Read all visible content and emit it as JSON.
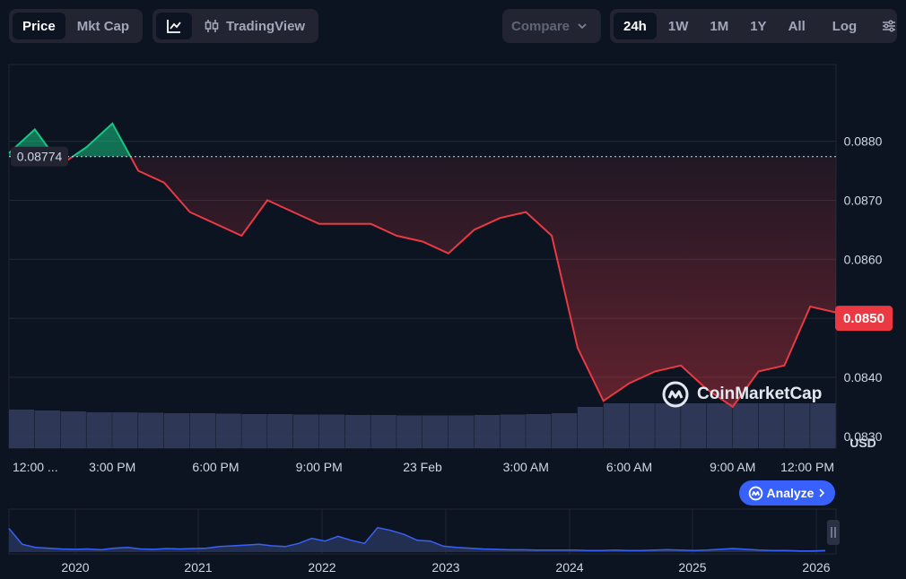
{
  "toolbar": {
    "tabs": [
      "Price",
      "Mkt Cap"
    ],
    "active_tab": "Price",
    "tradingview_label": "TradingView",
    "compare_label": "Compare",
    "ranges": [
      "24h",
      "1W",
      "1M",
      "1Y",
      "All"
    ],
    "active_range": "24h",
    "log_label": "Log"
  },
  "watermark": "CoinMarketCap",
  "analyze_label": "Analyze",
  "colors": {
    "up": "#16c784",
    "down": "#ea3943",
    "accent": "#3861fb",
    "volume": "#323b5c"
  },
  "chart_data": {
    "type": "line",
    "x_ticks": [
      "12:00 ...",
      "3:00 PM",
      "6:00 PM",
      "9:00 PM",
      "23 Feb",
      "3:00 AM",
      "6:00 AM",
      "9:00 AM",
      "12:00 PM"
    ],
    "y_ticks": [
      0.088,
      0.087,
      0.086,
      0.085,
      0.084,
      0.083
    ],
    "y_tick_labels": [
      "0.0880",
      "0.0870",
      "0.0860",
      "0.0850",
      "0.0840",
      "0.0830"
    ],
    "ylim": [
      0.0828,
      0.0893
    ],
    "ylabel": "USD",
    "reference_price": 0.08774,
    "reference_label": "0.08774",
    "current_price": 0.085,
    "current_label": "0.0850",
    "series": [
      {
        "x": [
          0,
          0.75,
          1.5,
          2.25,
          3,
          3.75,
          4.5,
          5.25,
          6,
          6.75,
          7.5,
          8.25,
          9,
          9.75,
          10.5,
          11.25,
          12,
          12.75,
          13.5,
          14.25,
          15,
          15.75,
          16.5,
          17.25,
          18,
          18.75,
          19.5,
          20.25,
          21,
          21.75,
          22.5,
          23.25,
          24
        ],
        "values": [
          0.0878,
          0.0882,
          0.0876,
          0.0879,
          0.0883,
          0.0875,
          0.0873,
          0.0868,
          0.0866,
          0.0864,
          0.087,
          0.0868,
          0.0866,
          0.0866,
          0.0866,
          0.0864,
          0.0863,
          0.0861,
          0.0865,
          0.0867,
          0.0868,
          0.0864,
          0.0845,
          0.0836,
          0.0839,
          0.0841,
          0.0842,
          0.0838,
          0.0835,
          0.0841,
          0.0842,
          0.0852,
          0.0851
        ]
      }
    ],
    "volume": [
      0.86,
      0.84,
      0.82,
      0.8,
      0.8,
      0.79,
      0.78,
      0.78,
      0.77,
      0.76,
      0.76,
      0.75,
      0.75,
      0.74,
      0.74,
      0.73,
      0.73,
      0.73,
      0.74,
      0.75,
      0.76,
      0.78,
      0.92,
      1.0,
      1.0,
      1.0,
      1.0,
      1.0,
      1.0,
      1.0,
      1.0,
      1.0
    ],
    "overview": {
      "x_ticks": [
        "2020",
        "2021",
        "2022",
        "2023",
        "2024",
        "2025",
        "2026"
      ],
      "values": [
        0.6,
        0.2,
        0.12,
        0.1,
        0.08,
        0.07,
        0.08,
        0.06,
        0.1,
        0.12,
        0.08,
        0.07,
        0.09,
        0.08,
        0.09,
        0.1,
        0.14,
        0.16,
        0.18,
        0.2,
        0.16,
        0.14,
        0.22,
        0.35,
        0.28,
        0.4,
        0.3,
        0.22,
        0.62,
        0.55,
        0.45,
        0.3,
        0.28,
        0.15,
        0.12,
        0.1,
        0.08,
        0.07,
        0.06,
        0.06,
        0.05,
        0.05,
        0.05,
        0.05,
        0.04,
        0.04,
        0.05,
        0.04,
        0.04,
        0.05,
        0.06,
        0.05,
        0.04,
        0.05,
        0.07,
        0.09,
        0.07,
        0.05,
        0.04,
        0.04,
        0.03,
        0.03,
        0.04
      ]
    }
  }
}
